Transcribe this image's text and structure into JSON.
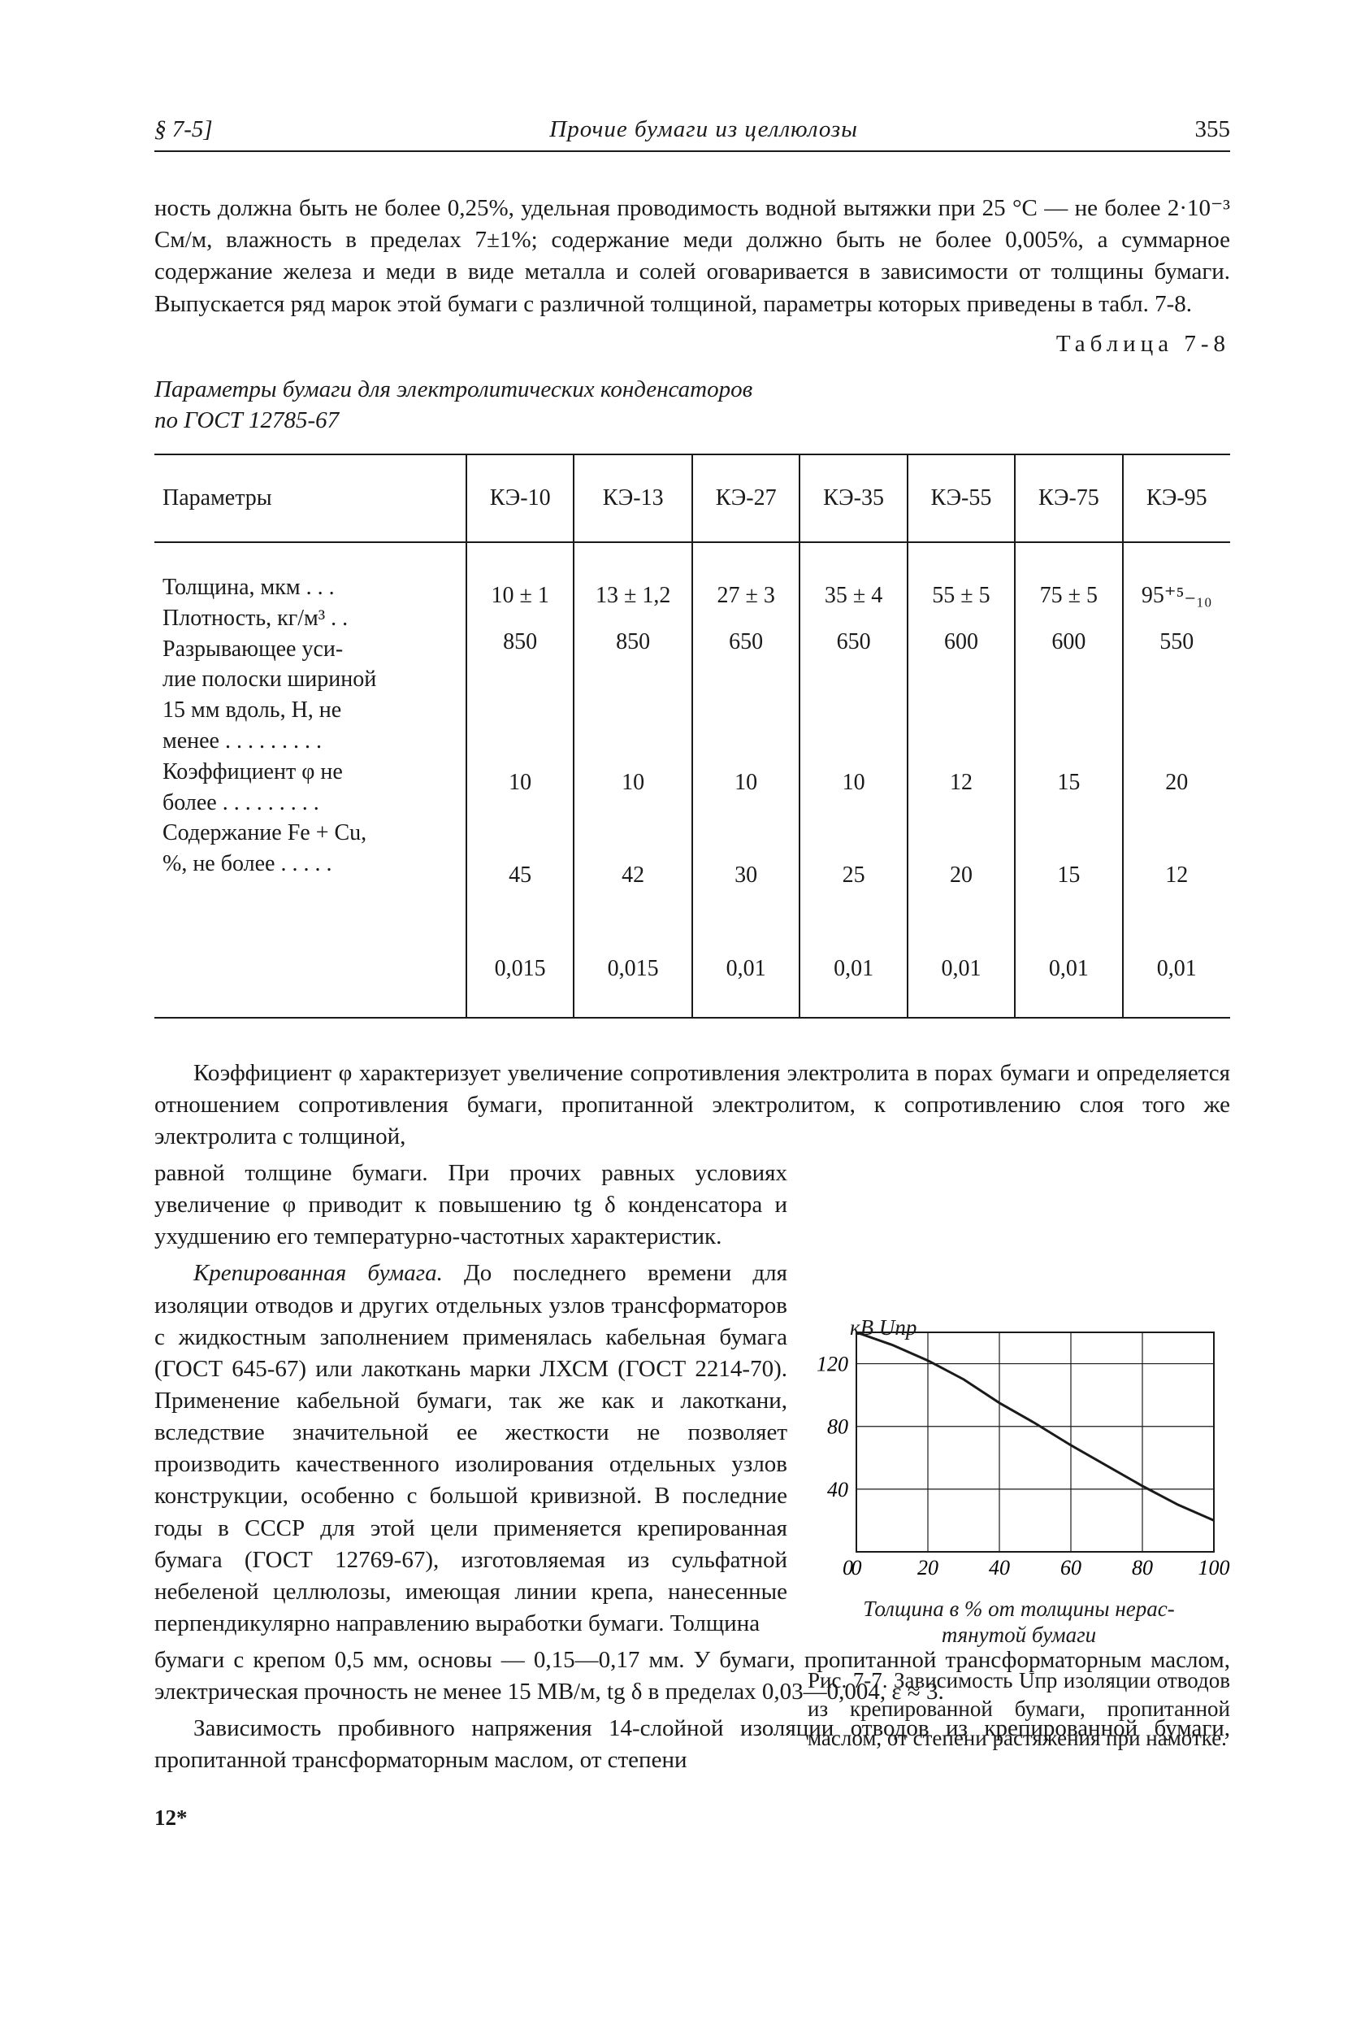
{
  "header": {
    "section": "§ 7-5]",
    "running_title": "Прочие бумаги из целлюлозы",
    "page_number": "355"
  },
  "para_top": "ность должна быть не более 0,25%, удельная проводимость водной вытяжки при 25 °C — не более 2·10⁻³ См/м, влажность в пределах 7±1%; содержание меди должно быть не более 0,005%, а суммарное содержание железа и меди в виде металла и солей оговаривается в зависимости от толщины бумаги. Выпускается ряд марок этой бумаги с различной толщиной, параметры которых приведены в табл. 7-8.",
  "table_ref": "Таблица  7-8",
  "table_title_a": "Параметры бумаги для электролитических конденсаторов",
  "table_title_b": "по ГОСТ 12785-67",
  "table": {
    "param_header": "Параметры",
    "columns": [
      "КЭ-10",
      "КЭ-13",
      "КЭ-27",
      "КЭ-35",
      "КЭ-55",
      "КЭ-75",
      "КЭ-95"
    ],
    "row_labels": {
      "r1": "Толщина, мкм . . .",
      "r2": "Плотность, кг/м³ . .",
      "r3a": "Разрывающее уси-",
      "r3b": "лие полоски шириной",
      "r3c": "15 мм вдоль, Н, не",
      "r3d": "менее . . . . . . . . .",
      "r4a": "Коэффициент φ не",
      "r4b": "более . . . . . . . . .",
      "r5a": "Содержание Fe + Cu,",
      "r5b": "%, не более . . . . ."
    },
    "values": {
      "thickness": [
        "10 ± 1",
        "13 ± 1,2",
        "27 ± 3",
        "35 ± 4",
        "55 ± 5",
        "75 ± 5",
        "95⁺⁵₋₁₀"
      ],
      "density": [
        "850",
        "850",
        "650",
        "650",
        "600",
        "600",
        "550"
      ],
      "breaking": [
        "10",
        "10",
        "10",
        "10",
        "12",
        "15",
        "20"
      ],
      "phi": [
        "45",
        "42",
        "30",
        "25",
        "20",
        "15",
        "12"
      ],
      "fecu": [
        "0,015",
        "0,015",
        "0,01",
        "0,01",
        "0,01",
        "0,01",
        "0,01"
      ]
    }
  },
  "para_mid1": "Коэффициент φ характеризует увеличение сопротивления электролита в порах бумаги и определяется отношением сопротивления бумаги, пропитанной электролитом, к сопротивлению слоя того же электролита с толщиной,",
  "para_mid2": "равной толщине бумаги. При прочих равных условиях увеличение φ приводит к повышению tg δ конденсатора и ухудшению его температурно-частотных характеристик.",
  "para_mid3": "Крепированная бумага. До последнего времени для изоляции отводов и других отдельных узлов трансформаторов с жидкостным заполнением применялась кабельная бумага (ГОСТ 645-67) или лакоткань марки ЛХСМ (ГОСТ 2214-70). Применение кабельной бумаги, так же как и лакоткани, вследствие значительной ее жесткости не позволяет производить качественного изолирования отдельных узлов конструкции, особенно с большой кривизной. В последние годы в СССР для этой цели применяется крепированная бумага (ГОСТ 12769-67), изготовляемая из сульфатной небеленой целлюлозы, имеющая линии крепа, нанесенные перпендикулярно направлению выработки бумаги. Толщина",
  "para_bottom1": "бумаги с крепом 0,5 мм, основы — 0,15—0,17 мм. У бумаги, пропитанной трансформаторным маслом, электрическая прочность не менее 15 МВ/м, tg δ в пределах 0,03—0,004, ε ≈ 3.",
  "para_bottom2": "Зависимость пробивного напряжения 14-слойной изоляции отводов из крепированной бумаги, пропитанной трансформаторным маслом, от степени",
  "figure": {
    "type": "line",
    "y_label_top": "кВ",
    "y_series_label": "Uпр",
    "x_axis_label_a": "Толщина в % от толщины нерас-",
    "x_axis_label_b": "тянутой бумаги",
    "caption": "Рис. 7-7. Зависимость Uпр изоляции отводов из крепированной бумаги, пропитанной маслом, от степени растяжения при намотке.",
    "xlim": [
      0,
      100
    ],
    "ylim": [
      0,
      140
    ],
    "xticks": [
      0,
      20,
      40,
      60,
      80,
      100
    ],
    "yticks": [
      0,
      40,
      80,
      120
    ],
    "xtick_labels": [
      "0",
      "20",
      "40",
      "60",
      "80",
      "100"
    ],
    "ytick_labels": [
      "0",
      "40",
      "80",
      "120"
    ],
    "grid_color": "#1a1a1a",
    "line_color": "#1a1a1a",
    "line_width": 3,
    "background_color": "#ffffff",
    "data": [
      {
        "x": 0,
        "y": 140
      },
      {
        "x": 10,
        "y": 132
      },
      {
        "x": 20,
        "y": 122
      },
      {
        "x": 30,
        "y": 110
      },
      {
        "x": 40,
        "y": 95
      },
      {
        "x": 50,
        "y": 82
      },
      {
        "x": 60,
        "y": 68
      },
      {
        "x": 70,
        "y": 55
      },
      {
        "x": 80,
        "y": 42
      },
      {
        "x": 90,
        "y": 30
      },
      {
        "x": 100,
        "y": 20
      }
    ]
  },
  "footmark": "12*"
}
